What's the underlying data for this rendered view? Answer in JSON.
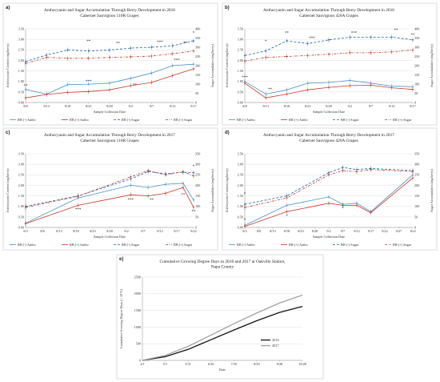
{
  "figure": {
    "background": "#ffffff"
  },
  "colors": {
    "anthoNeg": "#4a90c8",
    "anthoPos": "#c0392b",
    "sugarNeg": "#1f5fa8",
    "sugarPos": "#b03a2e",
    "gdd2016": "#111111",
    "gdd2017": "#a0a0a0",
    "grid": "#d9d9d9",
    "axis": "#888888"
  },
  "chart_data": [
    {
      "panel": "a)",
      "type": "line",
      "title": "Anthocyanin and Sugar Accumulation Through Berry Development in 2016",
      "subtitle": "Cabernet Sauvignon 110R Grapes",
      "xlabel": "Sample Collection Date",
      "ylabel": "Anthocyanin Content (mg/berry)",
      "y2label": "Sugar Accumulation (mg/berry)",
      "x_ticks": [
        "8/8",
        "8/13",
        "8/18",
        "8/23",
        "8/28",
        "9/2",
        "9/7",
        "9/12",
        "9/17"
      ],
      "ylim": [
        0,
        3.5
      ],
      "y_ticks": [
        "0.00",
        "0.50",
        "1.00",
        "1.50",
        "2.00",
        "2.50",
        "3.00",
        "3.50"
      ],
      "y2lim": [
        0,
        400
      ],
      "y2_ticks": [
        "0",
        "50",
        "100",
        "150",
        "200",
        "250",
        "300",
        "350",
        "400"
      ],
      "series": [
        {
          "name": "RB (-) Antho",
          "axis": "left",
          "style": "solid",
          "color_key": "anthoNeg",
          "x": [
            0,
            5,
            10,
            15,
            20,
            25,
            30,
            35,
            40
          ],
          "values": [
            0.62,
            0.4,
            0.85,
            0.87,
            0.92,
            1.15,
            1.4,
            1.75,
            1.82
          ]
        },
        {
          "name": "RB (+) Antho",
          "axis": "left",
          "style": "solid",
          "color_key": "anthoPos",
          "x": [
            0,
            5,
            10,
            15,
            20,
            25,
            30,
            35,
            40
          ],
          "values": [
            0.22,
            0.38,
            0.48,
            0.52,
            0.6,
            0.8,
            0.95,
            1.28,
            1.6
          ]
        },
        {
          "name": "RB (-) Sugar",
          "axis": "right",
          "style": "dash",
          "color_key": "sugarNeg",
          "x": [
            0,
            5,
            10,
            15,
            20,
            25,
            30,
            35,
            40
          ],
          "values": [
            222,
            258,
            285,
            280,
            285,
            295,
            300,
            308,
            335
          ]
        },
        {
          "name": "RB (+) Sugar",
          "axis": "right",
          "style": "dashdot",
          "color_key": "sugarPos",
          "x": [
            0,
            5,
            10,
            15,
            20,
            25,
            30,
            35,
            40
          ],
          "values": [
            212,
            245,
            240,
            240,
            245,
            248,
            252,
            265,
            280
          ]
        }
      ],
      "annotations": [
        {
          "text": "**",
          "x": 0,
          "y": 0.75
        },
        {
          "text": "***",
          "x": 15,
          "y": 0.95
        },
        {
          "text": "**",
          "x": 26,
          "y": 0.78
        },
        {
          "text": "***",
          "x": 36,
          "y": 1.95
        },
        {
          "text": "**",
          "x": 15,
          "y": 2.85
        },
        {
          "text": "**",
          "x": 22,
          "y": 2.75
        },
        {
          "text": "***",
          "x": 32,
          "y": 2.82
        },
        {
          "text": "**",
          "x": 38,
          "y": 2.78
        },
        {
          "text": "*",
          "x": 40,
          "y": 3.25
        }
      ]
    },
    {
      "panel": "b)",
      "type": "line",
      "title": "Anthocyanin and Sugar Accumulation Through Berry Development in 2016",
      "subtitle": "Cabernet Sauvignon 420A Grapes",
      "xlabel": "Sample Collection Date",
      "ylabel": "Anthocyanin Content (mg/berry)",
      "y2label": "Sugar Accumulation (mg/berry)",
      "x_ticks": [
        "8/8",
        "8/13",
        "8/18",
        "8/23",
        "8/28",
        "9/2",
        "9/7",
        "9/12",
        "9/17"
      ],
      "ylim": [
        0,
        3.5
      ],
      "y_ticks": [
        "0.00",
        "0.50",
        "1.00",
        "1.50",
        "2.00",
        "2.50",
        "3.00",
        "3.50"
      ],
      "y2lim": [
        0,
        400
      ],
      "y2_ticks": [
        "0",
        "50",
        "100",
        "150",
        "200",
        "250",
        "300",
        "350",
        "400"
      ],
      "series": [
        {
          "name": "RB (-) Antho",
          "axis": "left",
          "style": "solid",
          "color_key": "anthoNeg",
          "x": [
            0,
            5,
            10,
            15,
            20,
            25,
            30,
            35,
            40
          ],
          "values": [
            1.0,
            0.4,
            0.6,
            0.92,
            0.95,
            1.05,
            0.92,
            0.78,
            0.75
          ]
        },
        {
          "name": "RB (+) Antho",
          "axis": "left",
          "style": "solid",
          "color_key": "anthoPos",
          "x": [
            0,
            5,
            10,
            15,
            20,
            25,
            30,
            35,
            40
          ],
          "values": [
            0.92,
            0.22,
            0.4,
            0.6,
            0.72,
            0.8,
            0.82,
            0.7,
            0.62
          ]
        },
        {
          "name": "RB (-) Sugar",
          "axis": "right",
          "style": "dash",
          "color_key": "sugarNeg",
          "x": [
            0,
            5,
            10,
            15,
            20,
            25,
            30,
            35,
            40
          ],
          "values": [
            255,
            280,
            335,
            320,
            340,
            355,
            355,
            355,
            340
          ]
        },
        {
          "name": "RB (+) Sugar",
          "axis": "right",
          "style": "dashdot",
          "color_key": "sugarPos",
          "x": [
            0,
            5,
            10,
            15,
            20,
            25,
            30,
            35,
            40
          ],
          "values": [
            225,
            245,
            250,
            255,
            262,
            270,
            270,
            275,
            285
          ]
        }
      ],
      "annotations": [
        {
          "text": "***",
          "x": 0,
          "y": 1.15
        },
        {
          "text": "**",
          "x": 6,
          "y": 0.58
        },
        {
          "text": "*",
          "x": 5,
          "y": 2.85
        },
        {
          "text": "**",
          "x": 10,
          "y": 3.25
        },
        {
          "text": "***",
          "x": 16,
          "y": 3.0
        },
        {
          "text": "***",
          "x": 26,
          "y": 3.25
        },
        {
          "text": "**",
          "x": 36,
          "y": 3.38
        },
        {
          "text": "**",
          "x": 40,
          "y": 3.15
        }
      ]
    },
    {
      "panel": "c)",
      "type": "line",
      "title": "Anthocyanin and Sugar Accumulation Through Berry Development in 2017",
      "subtitle": "Cabernet Sauvignon 110R Grapes",
      "xlabel": "Sample Collection Date",
      "ylabel": "Anthocyanin Content (mg/berry)",
      "y2label": "Sugar Accumulation (mg/berry)",
      "x_ticks": [
        "8/3",
        "8/8",
        "8/13",
        "8/18",
        "8/23",
        "8/28",
        "9/2",
        "9/7",
        "9/12",
        "9/17",
        "9/22"
      ],
      "ylim": [
        0,
        3.5
      ],
      "y_ticks": [
        "0.00",
        "0.50",
        "1.00",
        "1.50",
        "2.00",
        "2.50",
        "3.00",
        "3.50"
      ],
      "y2lim": [
        0,
        350
      ],
      "y2_ticks": [
        "0",
        "50",
        "100",
        "150",
        "200",
        "250",
        "300",
        "350"
      ],
      "series": [
        {
          "name": "RB (-) Antho",
          "axis": "left",
          "style": "solid",
          "color_key": "anthoNeg",
          "x": [
            0,
            15,
            30,
            35,
            40,
            45,
            48
          ],
          "values": [
            0.2,
            1.4,
            2.0,
            1.9,
            2.05,
            2.1,
            1.3
          ]
        },
        {
          "name": "RB (+) Antho",
          "axis": "left",
          "style": "solid",
          "color_key": "anthoPos",
          "x": [
            0,
            15,
            30,
            35,
            40,
            45,
            48
          ],
          "values": [
            0.18,
            1.05,
            1.55,
            1.5,
            1.62,
            1.9,
            0.95
          ]
        },
        {
          "name": "RB (-) Sugar",
          "axis": "right",
          "style": "dash",
          "color_key": "sugarNeg",
          "x": [
            0,
            15,
            30,
            35,
            40,
            45,
            48
          ],
          "values": [
            100,
            150,
            230,
            265,
            255,
            262,
            260
          ]
        },
        {
          "name": "RB (+) Sugar",
          "axis": "right",
          "style": "dashdot",
          "color_key": "sugarPos",
          "x": [
            0,
            15,
            30,
            35,
            40,
            45,
            48
          ],
          "values": [
            95,
            148,
            240,
            270,
            250,
            265,
            245
          ]
        }
      ],
      "annotations": [
        {
          "text": "***",
          "x": 15,
          "y": 0.8
        },
        {
          "text": "***",
          "x": 30,
          "y": 1.25
        },
        {
          "text": "**",
          "x": 36,
          "y": 1.25
        },
        {
          "text": "**",
          "x": 45,
          "y": 1.5
        },
        {
          "text": "**",
          "x": 48,
          "y": 0.7
        },
        {
          "text": "*",
          "x": 48,
          "y": 2.85
        }
      ]
    },
    {
      "panel": "d)",
      "type": "line",
      "title": "Anthocyanin and Sugar Accumulation Through Berry Development in 2017",
      "subtitle": "Cabernet Sauvignon 420A Grapes",
      "xlabel": "Sample Collection Date",
      "ylabel": "Anthocyanin Content (mg/berry)",
      "y2label": "Sugar Accumulation (mg/berry)",
      "x_ticks": [
        "8/3",
        "8/8",
        "8/13",
        "8/18",
        "8/23",
        "8/28",
        "9/2",
        "9/7",
        "9/12",
        "9/17",
        "9/22",
        "9/27",
        "10/2"
      ],
      "ylim": [
        0,
        3.5
      ],
      "y_ticks": [
        "0.00",
        "0.50",
        "1.00",
        "1.50",
        "2.00",
        "2.50",
        "3.00",
        "3.50"
      ],
      "y2lim": [
        0,
        350
      ],
      "y2_ticks": [
        "0",
        "50",
        "100",
        "150",
        "200",
        "250",
        "300",
        "350"
      ],
      "series": [
        {
          "name": "RB (-) Antho",
          "axis": "left",
          "style": "solid",
          "color_key": "anthoNeg",
          "x": [
            0,
            15,
            30,
            35,
            40,
            45,
            60
          ],
          "values": [
            0.1,
            1.05,
            1.45,
            1.1,
            1.15,
            0.75,
            2.5
          ]
        },
        {
          "name": "RB (+) Antho",
          "axis": "left",
          "style": "solid",
          "color_key": "anthoPos",
          "x": [
            0,
            15,
            30,
            35,
            40,
            45,
            60
          ],
          "values": [
            0.05,
            0.75,
            1.15,
            1.05,
            1.05,
            0.7,
            2.35
          ]
        },
        {
          "name": "RB (-) Sugar",
          "axis": "right",
          "style": "dash",
          "color_key": "sugarNeg",
          "x": [
            0,
            15,
            30,
            35,
            40,
            45,
            60
          ],
          "values": [
            110,
            150,
            260,
            285,
            275,
            280,
            270
          ]
        },
        {
          "name": "RB (+) Sugar",
          "axis": "right",
          "style": "dashdot",
          "color_key": "sugarPos",
          "x": [
            0,
            15,
            30,
            35,
            40,
            45,
            60
          ],
          "values": [
            95,
            140,
            250,
            270,
            265,
            275,
            265
          ]
        }
      ],
      "annotations": [
        {
          "text": "*",
          "x": 0,
          "y": 1.55
        },
        {
          "text": "*",
          "x": 15,
          "y": 0.5
        },
        {
          "text": "*",
          "x": 35,
          "y": 0.85
        },
        {
          "text": "*",
          "x": 0,
          "y": 0.3
        }
      ]
    },
    {
      "panel": "e)",
      "type": "line",
      "title": "Cumulative Growing Degree Days in 2016 and 2017 at Oakville Station, Napa County",
      "xlabel": "Date",
      "ylabel": "Cumulative Growing Degree Days (> 10°C)",
      "x_ticks": [
        "4/1",
        "5/1",
        "5/31",
        "6/30",
        "7/30",
        "8/29",
        "9/28",
        "10/28"
      ],
      "ylim": [
        0,
        2500
      ],
      "y_ticks": [
        "0",
        "500",
        "1000",
        "1500",
        "2000",
        "2500"
      ],
      "series": [
        {
          "name": "2016",
          "color_key": "gdd2016",
          "x": [
            0,
            30,
            60,
            90,
            120,
            150,
            180,
            210
          ],
          "values": [
            0,
            110,
            330,
            620,
            910,
            1190,
            1440,
            1620
          ]
        },
        {
          "name": "2017",
          "color_key": "gdd2017",
          "x": [
            0,
            30,
            60,
            90,
            120,
            150,
            180,
            210
          ],
          "values": [
            0,
            150,
            420,
            760,
            1100,
            1420,
            1720,
            1960
          ]
        }
      ]
    }
  ]
}
